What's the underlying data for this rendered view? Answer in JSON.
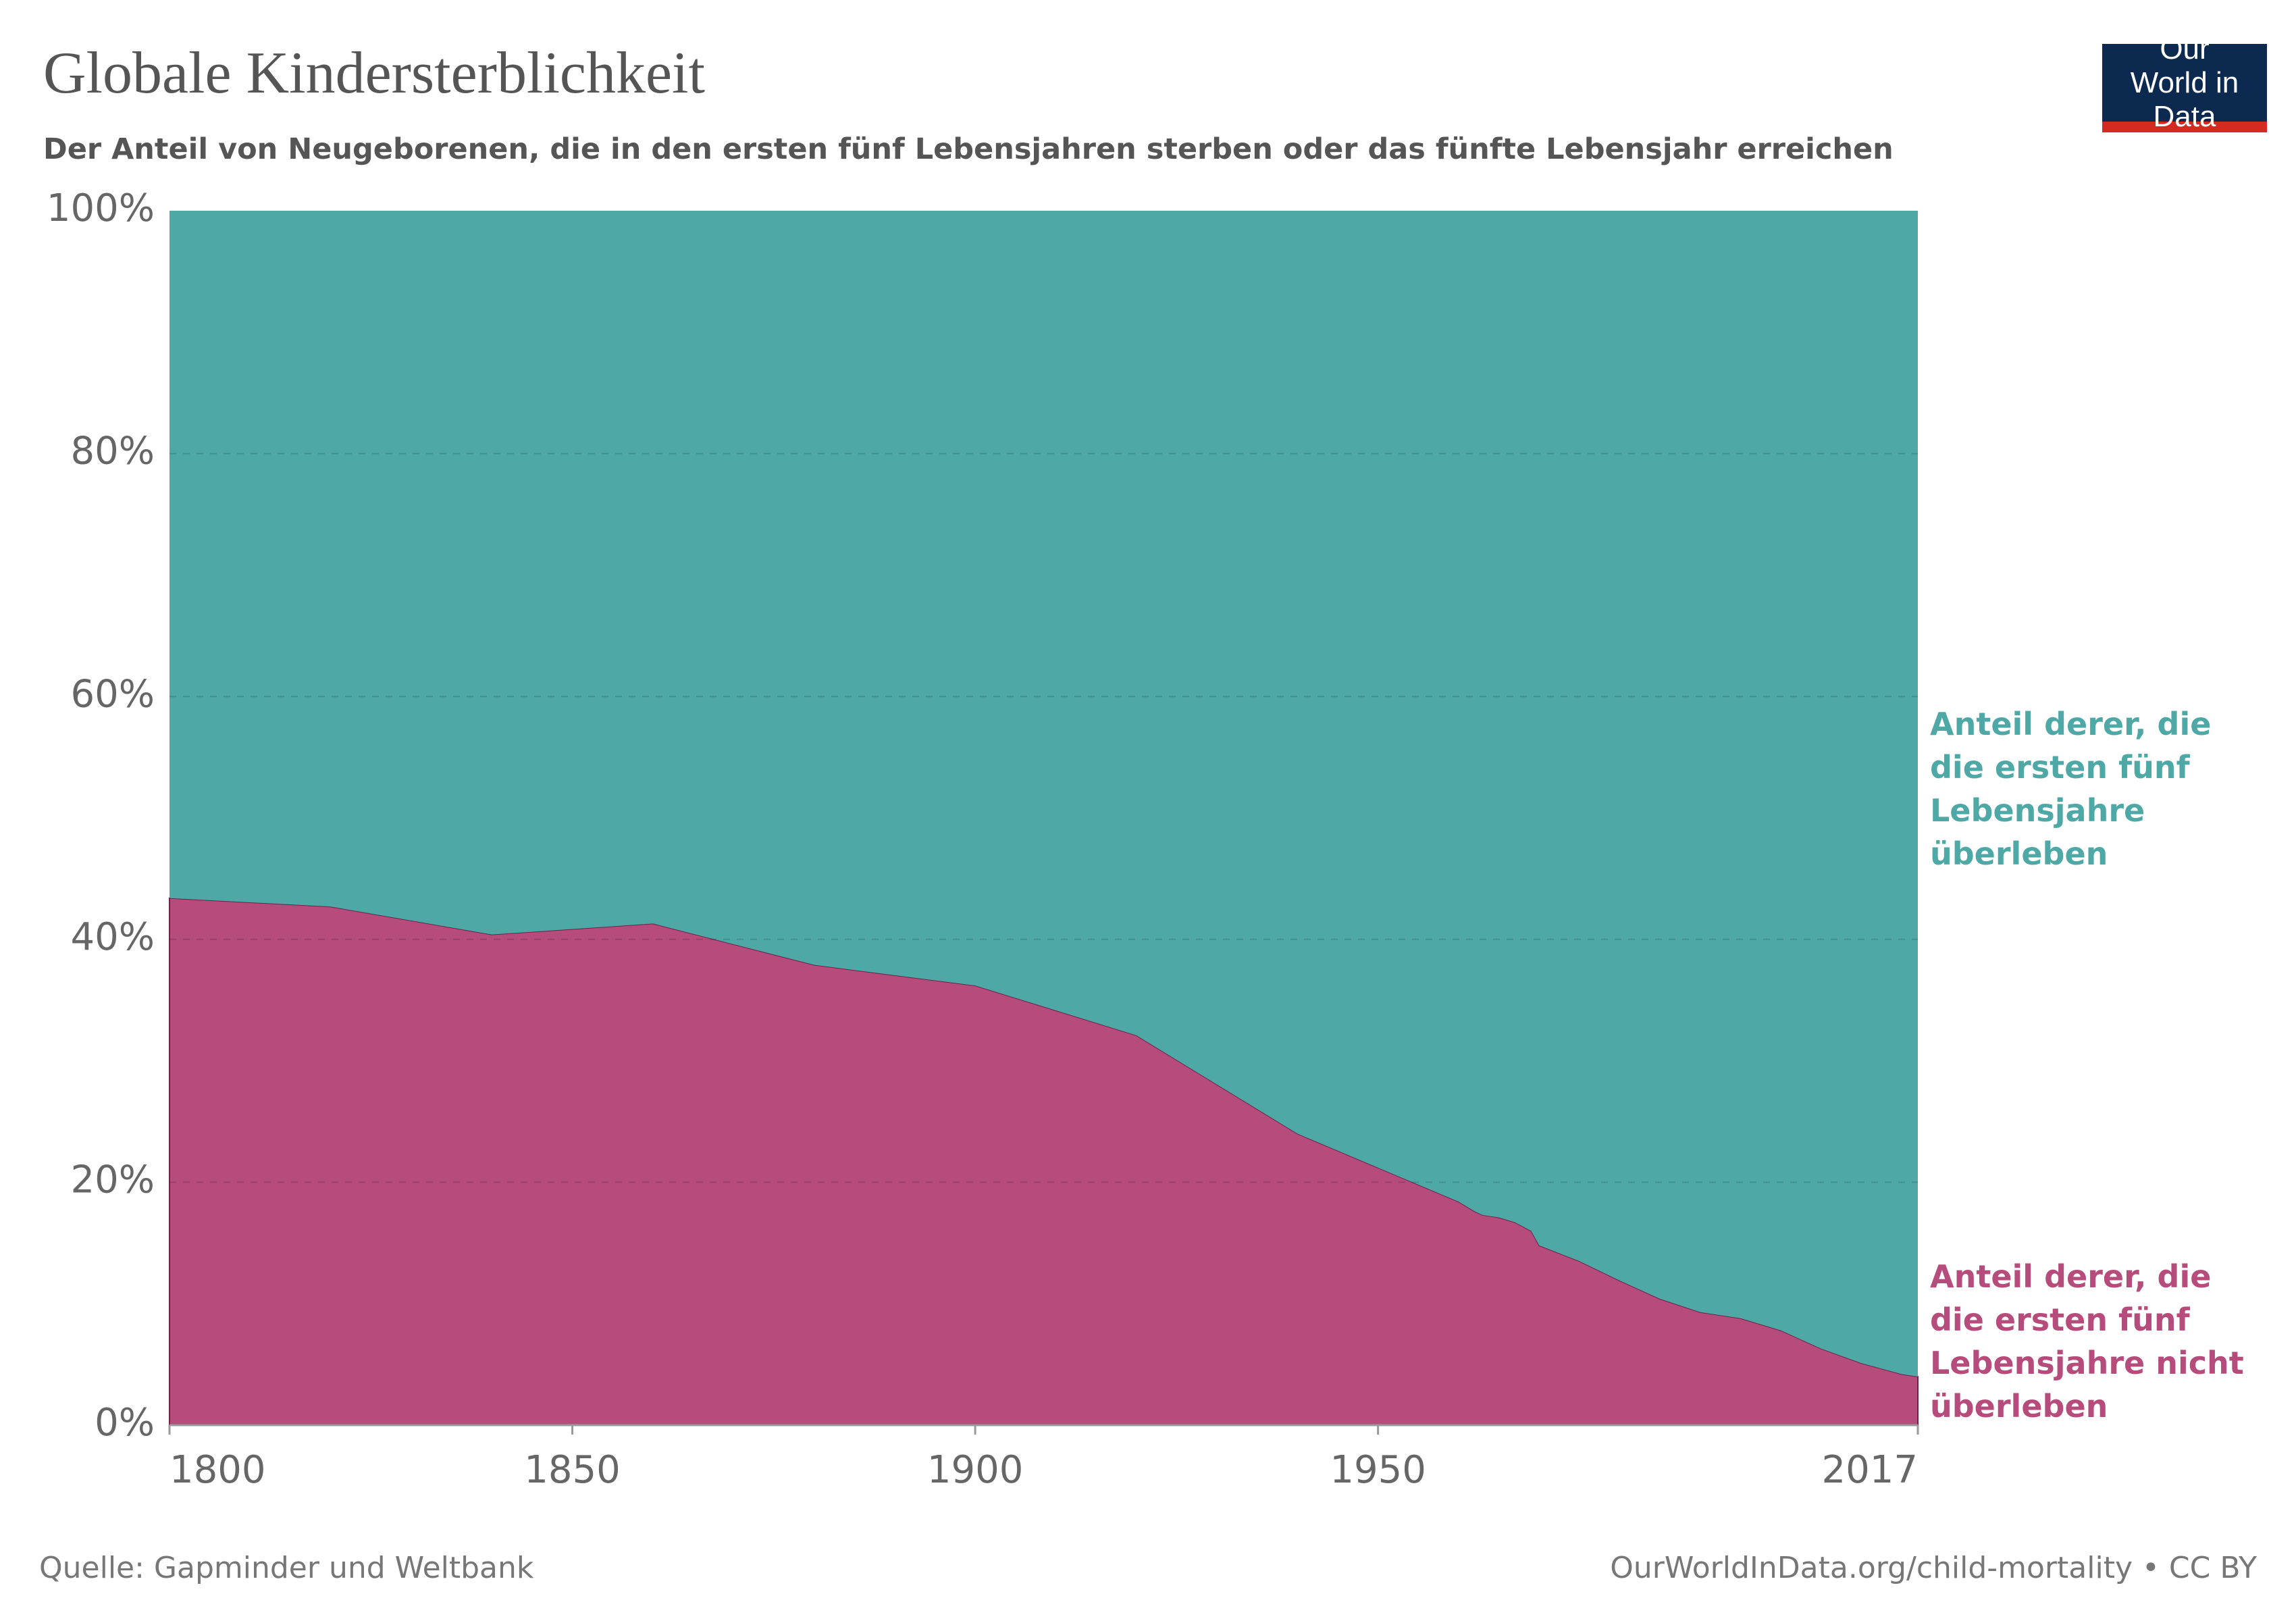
{
  "chart_data": {
    "type": "stacked_area",
    "title": "Globale Kindersterblichkeit",
    "subtitle": "Der Anteil von Neugeborenen, die in den ersten fünf Lebensjahren sterben oder das fünfte Lebensjahr erreichen",
    "source": "Quelle: Gapminder und Weltbank",
    "url": "OurWorldInData.org/child-mortality • CC BY",
    "logo": "Our World in Data",
    "x": [
      1800,
      1820,
      1840,
      1860,
      1880,
      1900,
      1920,
      1940,
      1950,
      1960,
      1962,
      1963,
      1965,
      1967,
      1969,
      1970,
      1975,
      1980,
      1985,
      1990,
      1995,
      2000,
      2005,
      2010,
      2015,
      2017
    ],
    "series": [
      {
        "name": "Anteil derer, die die ersten fünf Lebensjahre nicht überleben",
        "color": "#b64c7b",
        "values": [
          43.4,
          42.7,
          40.4,
          41.3,
          37.9,
          36.2,
          32.1,
          24.0,
          21.2,
          18.4,
          17.6,
          17.3,
          17.1,
          16.7,
          16.0,
          14.8,
          13.5,
          11.9,
          10.4,
          9.3,
          8.8,
          7.8,
          6.3,
          5.1,
          4.2,
          4.0
        ]
      },
      {
        "name": "Anteil derer, die die ersten fünf Lebensjahre überleben",
        "color": "#4ea9a6",
        "values": [
          56.6,
          57.3,
          59.6,
          58.7,
          62.1,
          63.8,
          67.9,
          76.0,
          78.8,
          81.6,
          82.4,
          82.7,
          82.9,
          83.3,
          84.0,
          85.2,
          86.5,
          88.1,
          89.6,
          90.7,
          91.2,
          92.2,
          93.7,
          94.9,
          95.8,
          96.0
        ]
      }
    ],
    "xlim": [
      1800,
      2017
    ],
    "xticks": [
      1800,
      1850,
      1900,
      1950,
      2017
    ],
    "ylim": [
      0,
      100
    ],
    "yticks": [
      {
        "value": 0,
        "label": "0%"
      },
      {
        "value": 20,
        "label": "20%"
      },
      {
        "value": 40,
        "label": "40%"
      },
      {
        "value": 60,
        "label": "60%"
      },
      {
        "value": 80,
        "label": "80%"
      },
      {
        "value": 100,
        "label": "100%"
      }
    ],
    "grid": true
  }
}
